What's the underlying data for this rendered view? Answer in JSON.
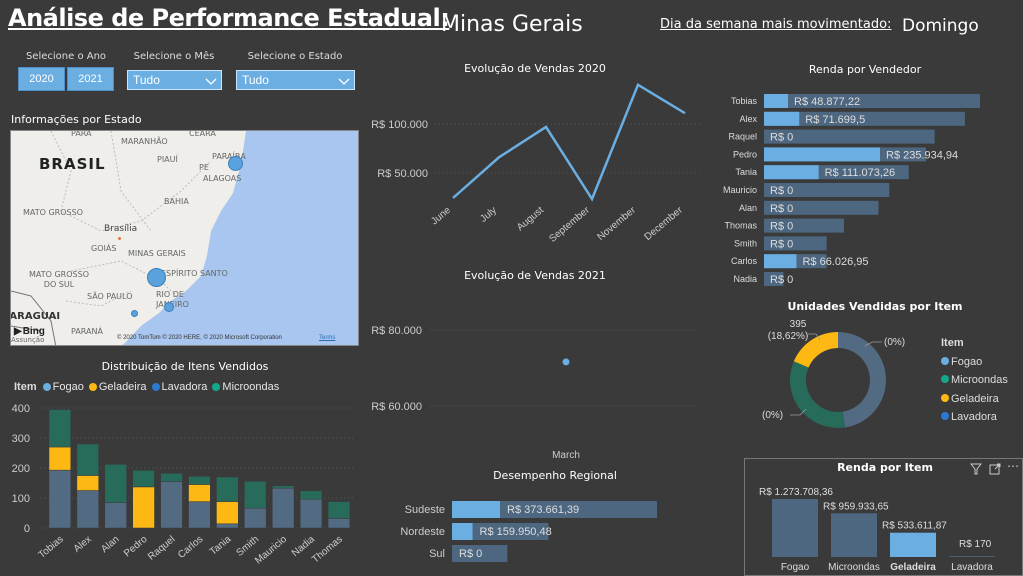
{
  "header": {
    "title": "Análise de Performance Estadual:",
    "state": "Minas Gerais",
    "busiest_day_label": "Dia da semana mais movimentado:",
    "busiest_day_value": "Domingo"
  },
  "filters": {
    "year_label": "Selecione o Ano",
    "years": [
      "2020",
      "2021"
    ],
    "month_label": "Selecione o Mês",
    "month_value": "Tudo",
    "state_label": "Selecione o Estado",
    "state_value": "Tudo"
  },
  "map": {
    "title": "Informações por Estado",
    "labels": [
      "PARÁ",
      "MARANHÃO",
      "CEARÁ",
      "BRASIL",
      "PIAUÍ",
      "PARAÍBA",
      "PE",
      "ALAGOAS",
      "BAHIA",
      "MATO GROSSO",
      "Brasília",
      "GOIÁS",
      "MINAS GERAIS",
      "ESPÍRITO SANTO",
      "MATO GROSSO DO SUL",
      "SÃO PAULO",
      "RIO DE JANEIRO",
      "PARAGUAI",
      "PARANÁ",
      "Assunção"
    ],
    "bing": "Bing",
    "copyright": "© 2020 TomTom © 2020 HERE, © 2020 Microsoft Corporation",
    "terms": "Terms"
  },
  "colors": {
    "fogao": "#526a82",
    "geladeira": "#fdb813",
    "lavadora": "#2c7ad1",
    "microondas": "#276b5b",
    "accent": "#6aaee2",
    "bar_bg": "#4e6780"
  },
  "chart_data": [
    {
      "id": "sales2020",
      "type": "line",
      "title": "Evolução de Vendas 2020",
      "categories": [
        "June",
        "July",
        "August",
        "September",
        "November",
        "December"
      ],
      "values": [
        24500,
        66000,
        97000,
        23500,
        140000,
        111000
      ],
      "yticks": [
        "R$ 50.000",
        "R$ 100.000"
      ],
      "ytick_values": [
        50000,
        100000
      ],
      "ylim": [
        0,
        145000
      ]
    },
    {
      "id": "sales2021",
      "type": "line",
      "title": "Evolução de Vendas 2021",
      "categories": [
        "March"
      ],
      "values": [
        71600
      ],
      "yticks": [
        "R$ 60.000",
        "R$ 80.000"
      ],
      "ytick_values": [
        60000,
        80000
      ]
    },
    {
      "id": "items",
      "type": "bar",
      "stacked": true,
      "title": "Distribuição de Itens Vendidos",
      "legend_title": "Item",
      "legend": [
        "Fogao",
        "Geladeira",
        "Lavadora",
        "Microondas"
      ],
      "categories": [
        "Tobias",
        "Alex",
        "Alan",
        "Pedro",
        "Raquel",
        "Carlos",
        "Tania",
        "Smith",
        "Mauricio",
        "Nadia",
        "Thomas"
      ],
      "series": [
        {
          "name": "Fogao",
          "values": [
            193,
            125,
            85,
            0,
            155,
            88,
            14,
            66,
            133,
            96,
            32
          ]
        },
        {
          "name": "Geladeira",
          "values": [
            77,
            50,
            0,
            137,
            0,
            57,
            74,
            0,
            0,
            0,
            0
          ]
        },
        {
          "name": "Lavadora",
          "values": [
            0,
            0,
            0,
            0,
            0,
            0,
            0,
            0,
            0,
            0,
            0
          ]
        },
        {
          "name": "Microondas",
          "values": [
            125,
            105,
            127,
            55,
            27,
            27,
            82,
            90,
            8,
            28,
            56
          ]
        }
      ],
      "yticks": [
        "0",
        "100",
        "200",
        "300",
        "400"
      ],
      "ylim": [
        0,
        400
      ]
    },
    {
      "id": "regional",
      "type": "bar",
      "orientation": "horizontal",
      "title": "Desempenho Regional",
      "categories": [
        "Sudeste",
        "Nordeste",
        "Sul"
      ],
      "values": [
        373661.39,
        159950.48,
        0
      ],
      "labels": [
        "R$ 373.661,39",
        "R$ 159.950,48",
        "R$ 0"
      ],
      "background_fraction": [
        1.0,
        0.47,
        0.27
      ]
    },
    {
      "id": "seller",
      "type": "bar",
      "orientation": "horizontal",
      "title": "Renda por Vendedor",
      "categories": [
        "Tobias",
        "Alex",
        "Raquel",
        "Pedro",
        "Tania",
        "Mauricio",
        "Alan",
        "Thomas",
        "Smith",
        "Carlos",
        "Nadia"
      ],
      "values": [
        48877.22,
        71699.5,
        0,
        235934.94,
        111073.26,
        0,
        0,
        0,
        0,
        66026.95,
        0
      ],
      "labels": [
        "R$ 48.877,22",
        "R$ 71.699,5",
        "R$ 0",
        "R$ 235.934,94",
        "R$ 111.073,26",
        "R$ 0",
        "R$ 0",
        "R$ 0",
        "R$ 0",
        "R$ 66.026,95",
        "R$ 0"
      ],
      "background_fraction": [
        1.0,
        0.93,
        0.79,
        0.75,
        0.67,
        0.58,
        0.53,
        0.37,
        0.29,
        0.29,
        0.09
      ]
    },
    {
      "id": "units",
      "type": "pie",
      "donut": true,
      "title": "Unidades Vendidas por Item",
      "legend_title": "Item",
      "legend": [
        "Fogao",
        "Microondas",
        "Geladeira",
        "Lavadora"
      ],
      "slices": [
        {
          "name": "Fogao",
          "fraction": 0.4764
        },
        {
          "name": "Microondas",
          "fraction": 0.3374
        },
        {
          "name": "Geladeira",
          "fraction": 0.1862
        },
        {
          "name": "Lavadora",
          "fraction": 0.0
        }
      ],
      "annotations": [
        "395",
        "(18,62%)",
        "(0%)",
        "(0%)"
      ]
    },
    {
      "id": "item_revenue",
      "type": "bar",
      "title": "Renda por Item",
      "categories": [
        "Fogao",
        "Microondas",
        "Geladeira",
        "Lavadora"
      ],
      "values": [
        1273708.36,
        959933.65,
        533611.87,
        170
      ],
      "labels": [
        "R$ 1.273.708,36",
        "R$ 959.933,65",
        "R$ 533.611,87",
        "R$ 170"
      ],
      "highlighted": "Geladeira"
    }
  ]
}
